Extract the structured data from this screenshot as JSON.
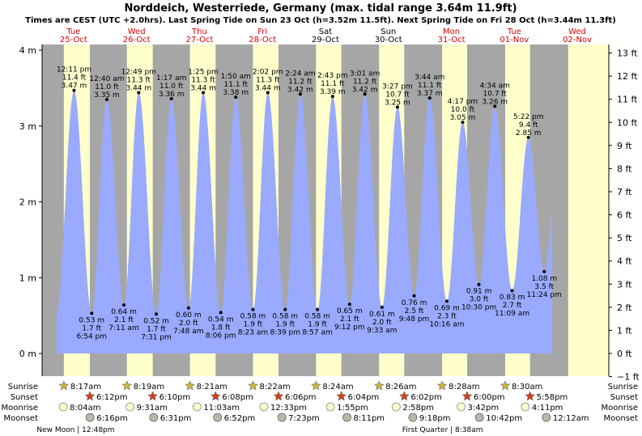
{
  "title": "Norddeich, Westerriede, Germany (max. tidal range 3.64m 11.9ft)",
  "subtitle": "Times are CEST (UTC +2.0hrs). Last Spring Tide on Sun 23 Oct (h=3.52m 11.5ft). Next Spring Tide on Fri 28 Oct (h=3.44m 11.3ft)",
  "colors": {
    "night": "#a6a6a6",
    "day": "#ffffcc",
    "water": "#99aaff",
    "red_text": "#dd0000"
  },
  "days": [
    {
      "dow": "Tue",
      "date": "25-Oct"
    },
    {
      "dow": "Wed",
      "date": "26-Oct"
    },
    {
      "dow": "Thu",
      "date": "27-Oct"
    },
    {
      "dow": "Fri",
      "date": "28-Oct"
    },
    {
      "dow": "Sat",
      "date": "29-Oct"
    },
    {
      "dow": "Sun",
      "date": "30-Oct"
    },
    {
      "dow": "Mon",
      "date": "31-Oct"
    },
    {
      "dow": "Tue",
      "date": "01-Nov"
    },
    {
      "dow": "Wed",
      "date": "02-Nov"
    }
  ],
  "row_labels": {
    "sunrise": "Sunrise",
    "sunset": "Sunset",
    "moonrise": "Moonrise",
    "moonset": "Moonset"
  },
  "sunrise": [
    "8:17am",
    "8:19am",
    "8:21am",
    "8:22am",
    "8:24am",
    "8:26am",
    "8:28am",
    "8:30am"
  ],
  "sunset": [
    "6:12pm",
    "6:10pm",
    "6:08pm",
    "6:06pm",
    "6:04pm",
    "6:02pm",
    "6:00pm",
    "5:58pm"
  ],
  "moonrise": [
    "8:04am",
    "9:31am",
    "11:03am",
    "12:33pm",
    "1:55pm",
    "2:58pm",
    "3:42pm",
    "4:11pm"
  ],
  "moonset": [
    "6:16pm",
    "6:31pm",
    "6:52pm",
    "7:23pm",
    "8:11pm",
    "9:18pm",
    "10:42pm",
    "12:12am"
  ],
  "moon_phases": [
    "New Moon | 12:48pm",
    "First Quarter | 8:38am"
  ],
  "chart_data": {
    "type": "area",
    "title": "Norddeich, Westerriede, Germany (max. tidal range 3.64m 11.9ft)",
    "y_left_unit": "m",
    "y_left_ticks": [
      "0 m",
      "1 m",
      "2 m",
      "3 m",
      "4 m"
    ],
    "y_right_ticks": [
      "−1 ft",
      "0 ft",
      "1 ft",
      "2 ft",
      "3 ft",
      "4 ft",
      "5 ft",
      "6 ft",
      "7 ft",
      "8 ft",
      "9 ft",
      "10 ft",
      "11 ft",
      "12 ft",
      "13 ft"
    ],
    "ylim_m": [
      -0.1,
      4.05
    ],
    "x_range_hours": [
      0,
      216
    ],
    "tides": [
      {
        "t": 12.18,
        "time": "12:11 pm",
        "ft": "11.4 ft",
        "m": "3.47 m",
        "h": 3.47,
        "type": "high"
      },
      {
        "t": 18.9,
        "time": "6:54 pm",
        "ft": "1.7 ft",
        "m": "0.53 m",
        "h": 0.53,
        "type": "low"
      },
      {
        "t": 24.67,
        "time": "12:40 am",
        "ft": "11.0 ft",
        "m": "3.35 m",
        "h": 3.35,
        "type": "high"
      },
      {
        "t": 31.18,
        "time": "7:11 am",
        "ft": "2.1 ft",
        "m": "0.64 m",
        "h": 0.64,
        "type": "low"
      },
      {
        "t": 36.82,
        "time": "12:49 pm",
        "ft": "11.3 ft",
        "m": "3.44 m",
        "h": 3.44,
        "type": "high"
      },
      {
        "t": 43.52,
        "time": "7:31 pm",
        "ft": "1.7 ft",
        "m": "0.52 m",
        "h": 0.52,
        "type": "low"
      },
      {
        "t": 49.28,
        "time": "1:17 am",
        "ft": "11.0 ft",
        "m": "3.36 m",
        "h": 3.36,
        "type": "high"
      },
      {
        "t": 55.8,
        "time": "7:48 am",
        "ft": "2.0 ft",
        "m": "0.60 m",
        "h": 0.6,
        "type": "low"
      },
      {
        "t": 61.42,
        "time": "1:25 pm",
        "ft": "11.3 ft",
        "m": "3.44 m",
        "h": 3.44,
        "type": "high"
      },
      {
        "t": 68.1,
        "time": "8:06 pm",
        "ft": "1.8 ft",
        "m": "0.54 m",
        "h": 0.54,
        "type": "low"
      },
      {
        "t": 73.83,
        "time": "1:50 am",
        "ft": "11.1 ft",
        "m": "3.38 m",
        "h": 3.38,
        "type": "high"
      },
      {
        "t": 80.38,
        "time": "8:23 am",
        "ft": "1.9 ft",
        "m": "0.58 m",
        "h": 0.58,
        "type": "low"
      },
      {
        "t": 86.03,
        "time": "2:02 pm",
        "ft": "11.3 ft",
        "m": "3.44 m",
        "h": 3.44,
        "type": "high"
      },
      {
        "t": 92.65,
        "time": "8:39 pm",
        "ft": "1.9 ft",
        "m": "0.58 m",
        "h": 0.58,
        "type": "low"
      },
      {
        "t": 98.4,
        "time": "2:24 am",
        "ft": "11.2 ft",
        "m": "3.42 m",
        "h": 3.42,
        "type": "high"
      },
      {
        "t": 104.95,
        "time": "8:57 am",
        "ft": "1.9 ft",
        "m": "0.58 m",
        "h": 0.58,
        "type": "low"
      },
      {
        "t": 110.72,
        "time": "2:43 pm",
        "ft": "11.1 ft",
        "m": "3.39 m",
        "h": 3.39,
        "type": "high"
      },
      {
        "t": 117.2,
        "time": "9:12 pm",
        "ft": "2.1 ft",
        "m": "0.65 m",
        "h": 0.65,
        "type": "low"
      },
      {
        "t": 123.02,
        "time": "3:01 am",
        "ft": "11.2 ft",
        "m": "3.42 m",
        "h": 3.42,
        "type": "high"
      },
      {
        "t": 129.55,
        "time": "9:33 am",
        "ft": "2.0 ft",
        "m": "0.61 m",
        "h": 0.61,
        "type": "low"
      },
      {
        "t": 135.45,
        "time": "3:27 pm",
        "ft": "10.7 ft",
        "m": "3.25 m",
        "h": 3.25,
        "type": "high"
      },
      {
        "t": 141.8,
        "time": "9:48 pm",
        "ft": "2.5 ft",
        "m": "0.76 m",
        "h": 0.76,
        "type": "low"
      },
      {
        "t": 147.73,
        "time": "3:44 am",
        "ft": "11.1 ft",
        "m": "3.37 m",
        "h": 3.37,
        "type": "high"
      },
      {
        "t": 154.27,
        "time": "10:16 am",
        "ft": "2.3 ft",
        "m": "0.69 m",
        "h": 0.69,
        "type": "low"
      },
      {
        "t": 160.28,
        "time": "4:17 pm",
        "ft": "10.0 ft",
        "m": "3.05 m",
        "h": 3.05,
        "type": "high"
      },
      {
        "t": 166.5,
        "time": "10:30 pm",
        "ft": "3.0 ft",
        "m": "0.91 m",
        "h": 0.91,
        "type": "low"
      },
      {
        "t": 172.57,
        "time": "4:34 am",
        "ft": "10.7 ft",
        "m": "3.26 m",
        "h": 3.26,
        "type": "high"
      },
      {
        "t": 179.15,
        "time": "11:09 am",
        "ft": "2.7 ft",
        "m": "0.83 m",
        "h": 0.83,
        "type": "low"
      },
      {
        "t": 185.37,
        "time": "5:22 pm",
        "ft": "9.4 ft",
        "m": "2.85 m",
        "h": 2.85,
        "type": "high"
      },
      {
        "t": 191.4,
        "time": "11:24 pm",
        "ft": "3.5 ft",
        "m": "1.08 m",
        "h": 1.08,
        "type": "low"
      }
    ],
    "daylight": [
      [
        8.28,
        18.2
      ],
      [
        32.32,
        42.17
      ],
      [
        56.35,
        66.13
      ],
      [
        80.37,
        90.1
      ],
      [
        104.4,
        114.07
      ],
      [
        128.43,
        138.03
      ],
      [
        152.47,
        162.0
      ],
      [
        176.5,
        185.97
      ],
      [
        200.5,
        216
      ]
    ],
    "sunrise_t": [
      8.28,
      32.32,
      56.35,
      80.37,
      104.4,
      128.43,
      152.47,
      176.5
    ],
    "sunset_t": [
      18.2,
      42.17,
      66.13,
      90.1,
      114.07,
      138.03,
      162.0,
      185.97
    ],
    "moonrise_t": [
      8.07,
      33.52,
      59.05,
      84.55,
      109.92,
      134.97,
      159.7,
      184.18
    ],
    "moonset_t": [
      18.27,
      42.52,
      66.87,
      91.38,
      116.18,
      141.3,
      166.7,
      192.2
    ],
    "moon_phase_t": [
      12.8,
      152.63
    ]
  }
}
